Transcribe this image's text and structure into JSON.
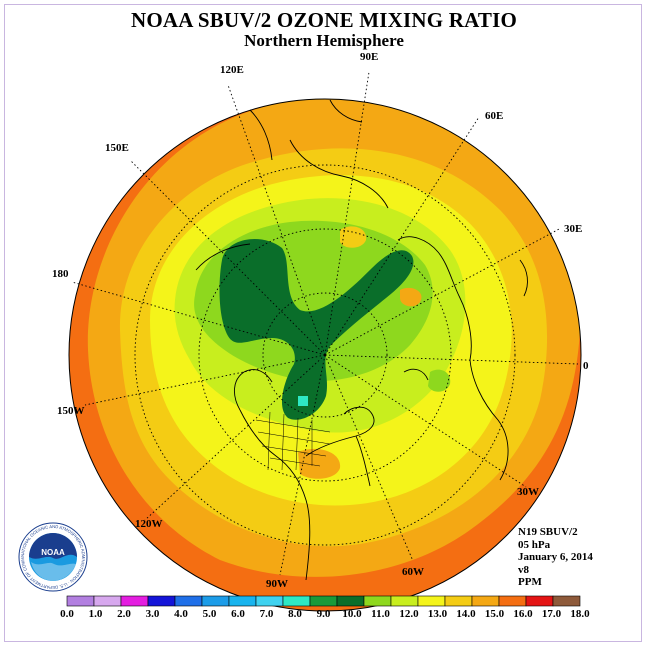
{
  "title": "NOAA SBUV/2 OZONE MIXING RATIO",
  "subtitle": "Northern Hemisphere",
  "info": {
    "instrument": "N19 SBUV/2",
    "level": "05 hPa",
    "date": "January 6, 2014",
    "version": "v8",
    "units": "PPM"
  },
  "longitude_labels": [
    {
      "text": "90E"
    },
    {
      "text": "60E"
    },
    {
      "text": "30E"
    },
    {
      "text": "0"
    },
    {
      "text": "30W"
    },
    {
      "text": "60W"
    },
    {
      "text": "90W"
    },
    {
      "text": "120W"
    },
    {
      "text": "150W"
    },
    {
      "text": "180"
    },
    {
      "text": "150E"
    },
    {
      "text": "120E"
    }
  ],
  "colorbar": {
    "ticks": [
      "0.0",
      "1.0",
      "2.0",
      "3.0",
      "4.0",
      "5.0",
      "6.0",
      "7.0",
      "8.0",
      "9.0",
      "10.0",
      "11.0",
      "12.0",
      "13.0",
      "14.0",
      "15.0",
      "16.0",
      "17.0",
      "18.0"
    ],
    "colors": [
      "#b27fe0",
      "#d7a8ee",
      "#e41ee0",
      "#1414d8",
      "#1f6fe8",
      "#1c9ce8",
      "#19b4ee",
      "#3fd2f0",
      "#2ee8c4",
      "#1a9a3a",
      "#0a6e2a",
      "#8ed81e",
      "#c8ee1e",
      "#f4f41a",
      "#f4cc14",
      "#f4a814",
      "#f46e12",
      "#e41414",
      "#8e5a3a"
    ]
  },
  "logo": {
    "text": "NOAA",
    "ring_text": "NATIONAL OCEANIC AND ATMOSPHERIC ADMINISTRATION · U.S. DEPARTMENT OF COMMERCE"
  },
  "map_colors": {
    "band_15_16": "#f46e12",
    "band_14_15": "#f4a814",
    "band_13_14": "#f4cc14",
    "band_12_13": "#f4f41a",
    "band_11_12": "#c8ee1e",
    "band_10_11": "#8ed81e",
    "band_9_10": "#0a6e2a",
    "band_7_8": "#2ee8c4"
  }
}
